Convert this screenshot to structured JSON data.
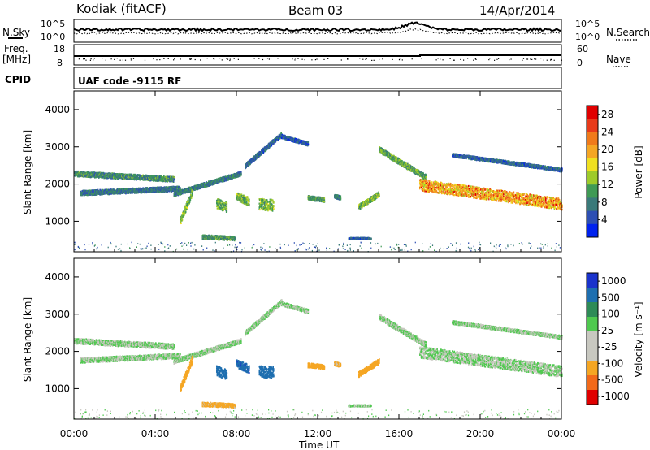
{
  "header": {
    "station": "Kodiak (fitACF)",
    "beam": "Beam 03",
    "date": "14/Apr/2014"
  },
  "status_panel": {
    "nsky_label": "N.Sky",
    "nsearch_label": "N.Search",
    "nsky_ticks": [
      "10^5",
      "10^0"
    ],
    "nsearch_ticks": [
      "10^5",
      "10^0"
    ],
    "freq_label_line1": "Freq.",
    "freq_label_line2": "[MHz]",
    "freq_ticks": [
      "18",
      "8"
    ],
    "nave_label": "Nave",
    "nave_ticks": [
      "60",
      "0"
    ],
    "cpid_label": "CPID",
    "cpid_text": "UAF code -9115 RF"
  },
  "time_axis": {
    "label": "Time UT",
    "ticks": [
      "00:00",
      "04:00",
      "08:00",
      "12:00",
      "16:00",
      "20:00",
      "00:00"
    ]
  },
  "colors": {
    "power_scale": [
      "#0022ee",
      "#2d4fb3",
      "#3a7a7a",
      "#3f9a55",
      "#9ecb2a",
      "#f0e020",
      "#f5a623",
      "#f07a1a",
      "#e83a1a",
      "#e00000"
    ],
    "velocity_scale": [
      "#e00000",
      "#f26a1a",
      "#f5a623",
      "#c8c8c0",
      "#c8c8c0",
      "#4fc94f",
      "#2e8b57",
      "#1e6fb0",
      "#1a33cc"
    ]
  },
  "chart_data": [
    {
      "type": "heatmap",
      "panel": "power",
      "title": "",
      "xlabel": "",
      "ylabel": "Slant Range [km]",
      "xlim": [
        0,
        24
      ],
      "ylim": [
        180,
        4500
      ],
      "yticks": [
        1000,
        2000,
        3000,
        4000
      ],
      "colorbar": {
        "label": "Power [dB]",
        "ticks": [
          "28",
          "24",
          "20",
          "16",
          "12",
          "8",
          "4"
        ],
        "range": [
          0,
          30
        ]
      },
      "echo_bands": [
        {
          "t_start": 0.0,
          "t_end": 4.9,
          "range_start": 2300,
          "range_end": 2150,
          "width": 140,
          "value": 9
        },
        {
          "t_start": 0.3,
          "t_end": 5.2,
          "range_start": 1780,
          "range_end": 1900,
          "width": 130,
          "value": 7
        },
        {
          "t_start": 4.9,
          "t_end": 8.2,
          "range_start": 1750,
          "range_end": 2300,
          "width": 120,
          "value": 8
        },
        {
          "t_start": 5.2,
          "t_end": 5.8,
          "range_start": 1000,
          "range_end": 1800,
          "width": 200,
          "value": 12
        },
        {
          "t_start": 6.3,
          "t_end": 7.9,
          "range_start": 600,
          "range_end": 560,
          "width": 110,
          "value": 10
        },
        {
          "t_start": 7.0,
          "t_end": 7.5,
          "range_start": 1500,
          "range_end": 1400,
          "width": 260,
          "value": 11
        },
        {
          "t_start": 8.0,
          "t_end": 8.6,
          "range_start": 1680,
          "range_end": 1550,
          "width": 220,
          "value": 12
        },
        {
          "t_start": 8.4,
          "t_end": 10.2,
          "range_start": 2500,
          "range_end": 3350,
          "width": 120,
          "value": 6
        },
        {
          "t_start": 10.2,
          "t_end": 11.5,
          "range_start": 3300,
          "range_end": 3100,
          "width": 100,
          "value": 5
        },
        {
          "t_start": 9.1,
          "t_end": 9.8,
          "range_start": 1480,
          "range_end": 1450,
          "width": 300,
          "value": 12
        },
        {
          "t_start": 11.5,
          "t_end": 12.3,
          "range_start": 1650,
          "range_end": 1600,
          "width": 120,
          "value": 10
        },
        {
          "t_start": 12.8,
          "t_end": 13.1,
          "range_start": 1700,
          "range_end": 1650,
          "width": 100,
          "value": 8
        },
        {
          "t_start": 14.0,
          "t_end": 15.0,
          "range_start": 1400,
          "range_end": 1750,
          "width": 140,
          "value": 12
        },
        {
          "t_start": 15.0,
          "t_end": 17.3,
          "range_start": 2950,
          "range_end": 2200,
          "width": 150,
          "value": 11
        },
        {
          "t_start": 17.0,
          "t_end": 24.0,
          "range_start": 2000,
          "range_end": 1480,
          "width": 300,
          "value": 18
        },
        {
          "t_start": 18.6,
          "t_end": 24.0,
          "range_start": 2800,
          "range_end": 2400,
          "width": 90,
          "value": 6
        },
        {
          "t_start": 13.5,
          "t_end": 14.6,
          "range_start": 560,
          "range_end": 560,
          "width": 40,
          "value": 6
        }
      ]
    },
    {
      "type": "heatmap",
      "panel": "velocity",
      "title": "",
      "xlabel": "Time UT",
      "ylabel": "Slant Range [km]",
      "xlim": [
        0,
        24
      ],
      "ylim": [
        180,
        4500
      ],
      "yticks": [
        1000,
        2000,
        3000,
        4000
      ],
      "colorbar": {
        "label": "Velocity [m s⁻¹]",
        "ticks": [
          "1000",
          "500",
          "100",
          "25",
          "-25",
          "-100",
          "-500",
          "-1000"
        ],
        "range": [
          -1000,
          1000
        ]
      },
      "echo_bands": [
        {
          "t_start": 0.0,
          "t_end": 4.9,
          "range_start": 2300,
          "range_end": 2150,
          "width": 140,
          "value": 0
        },
        {
          "t_start": 0.3,
          "t_end": 5.2,
          "range_start": 1780,
          "range_end": 1900,
          "width": 130,
          "value": 0
        },
        {
          "t_start": 4.9,
          "t_end": 8.2,
          "range_start": 1750,
          "range_end": 2300,
          "width": 120,
          "value": 0
        },
        {
          "t_start": 5.2,
          "t_end": 5.8,
          "range_start": 1000,
          "range_end": 1800,
          "width": 200,
          "value": -300
        },
        {
          "t_start": 6.3,
          "t_end": 7.9,
          "range_start": 600,
          "range_end": 560,
          "width": 110,
          "value": -200
        },
        {
          "t_start": 7.0,
          "t_end": 7.5,
          "range_start": 1500,
          "range_end": 1400,
          "width": 260,
          "value": 300
        },
        {
          "t_start": 8.0,
          "t_end": 8.6,
          "range_start": 1680,
          "range_end": 1550,
          "width": 220,
          "value": 400
        },
        {
          "t_start": 8.4,
          "t_end": 10.2,
          "range_start": 2500,
          "range_end": 3350,
          "width": 120,
          "value": 0
        },
        {
          "t_start": 10.2,
          "t_end": 11.5,
          "range_start": 3300,
          "range_end": 3100,
          "width": 100,
          "value": 0
        },
        {
          "t_start": 9.1,
          "t_end": 9.8,
          "range_start": 1480,
          "range_end": 1450,
          "width": 300,
          "value": 350
        },
        {
          "t_start": 11.5,
          "t_end": 12.3,
          "range_start": 1650,
          "range_end": 1600,
          "width": 120,
          "value": -300
        },
        {
          "t_start": 12.8,
          "t_end": 13.1,
          "range_start": 1700,
          "range_end": 1650,
          "width": 100,
          "value": -200
        },
        {
          "t_start": 14.0,
          "t_end": 15.0,
          "range_start": 1400,
          "range_end": 1750,
          "width": 140,
          "value": -250
        },
        {
          "t_start": 15.0,
          "t_end": 17.3,
          "range_start": 2950,
          "range_end": 2200,
          "width": 150,
          "value": 0
        },
        {
          "t_start": 17.0,
          "t_end": 24.0,
          "range_start": 2000,
          "range_end": 1480,
          "width": 300,
          "value": 0
        },
        {
          "t_start": 18.6,
          "t_end": 24.0,
          "range_start": 2800,
          "range_end": 2400,
          "width": 90,
          "value": 0
        },
        {
          "t_start": 13.5,
          "t_end": 14.6,
          "range_start": 560,
          "range_end": 560,
          "width": 40,
          "value": 0
        }
      ]
    }
  ]
}
